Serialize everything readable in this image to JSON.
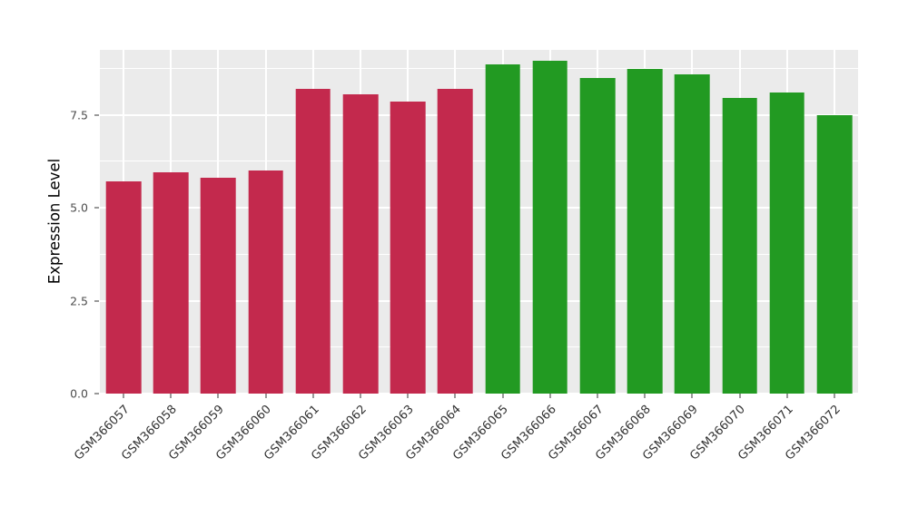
{
  "chart_data": {
    "type": "bar",
    "title": "",
    "xlabel": "",
    "ylabel": "Expression Level",
    "legend": "none",
    "grid": true,
    "panel_bg": "#EBEBEB",
    "grid_color": "#FFFFFF",
    "tick_color": "#333333",
    "tick_label_color": "#4D4D4D",
    "ylim": [
      0,
      9.25
    ],
    "y_ticks": [
      0.0,
      2.5,
      5.0,
      7.5
    ],
    "y_tick_labels": [
      "0.0",
      "2.5",
      "5.0",
      "7.5"
    ],
    "y_minor": [
      1.25,
      3.75,
      6.25,
      8.75
    ],
    "categories": [
      "GSM366057",
      "GSM366058",
      "GSM366059",
      "GSM366060",
      "GSM366061",
      "GSM366062",
      "GSM366063",
      "GSM366064",
      "GSM366065",
      "GSM366066",
      "GSM366067",
      "GSM366068",
      "GSM366069",
      "GSM366070",
      "GSM366071",
      "GSM366072"
    ],
    "values": [
      5.7,
      5.95,
      5.8,
      6.0,
      8.2,
      8.05,
      7.85,
      8.2,
      8.85,
      8.95,
      8.5,
      8.75,
      8.6,
      7.95,
      8.1,
      7.5
    ],
    "groups": [
      "group1",
      "group1",
      "group1",
      "group1",
      "group1",
      "group1",
      "group1",
      "group1",
      "group2",
      "group2",
      "group2",
      "group2",
      "group2",
      "group2",
      "group2",
      "group2"
    ],
    "colors": {
      "group1": "#C3294D",
      "group2": "#229A22"
    },
    "bar_width_fraction": 0.74
  }
}
